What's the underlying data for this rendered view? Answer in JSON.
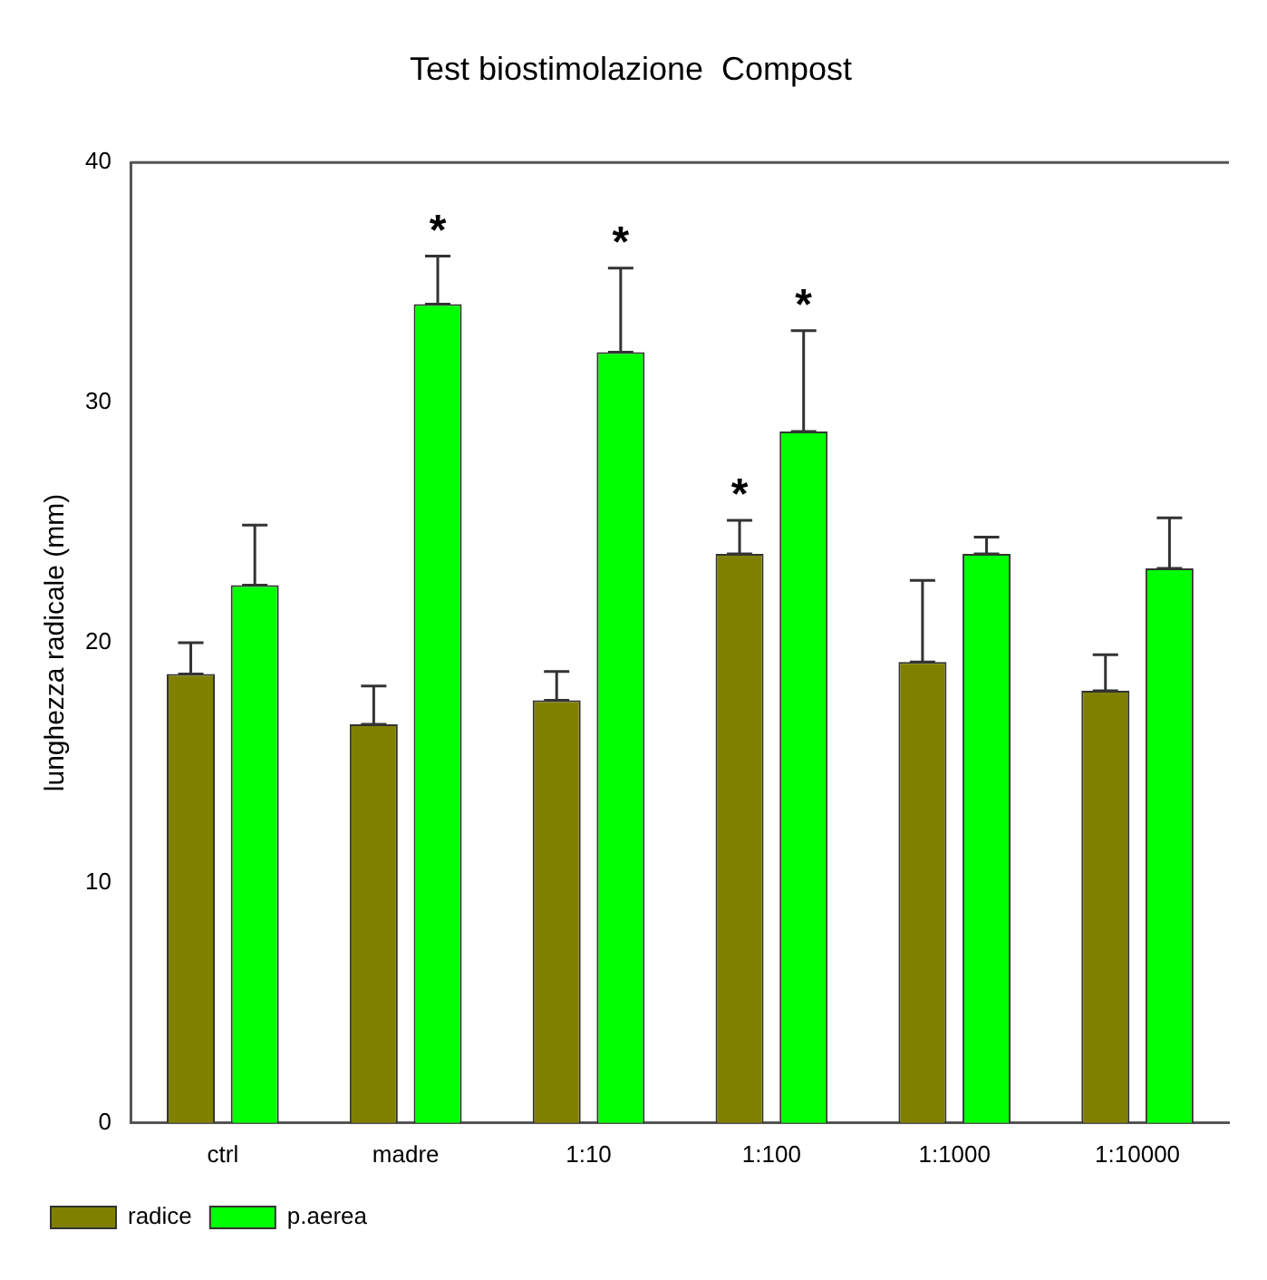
{
  "chart_data": {
    "type": "bar",
    "title": "Test biostimolazione  Compost",
    "ylabel": "lunghezza radicale (mm)",
    "categories": [
      "ctrl",
      "madre",
      "1:10",
      "1:100",
      "1:1000",
      "1:10000"
    ],
    "series": [
      {
        "name": "radice",
        "color": "#808000",
        "values": [
          18.7,
          16.6,
          17.6,
          23.7,
          19.2,
          18.0
        ],
        "value_labels": [
          null,
          null,
          null,
          "*",
          null,
          null
        ],
        "errors": [
          [
            18.7,
            20.0
          ],
          [
            16.6,
            18.2
          ],
          [
            17.6,
            18.8
          ],
          [
            23.7,
            25.1
          ],
          [
            19.2,
            22.6
          ],
          [
            18.0,
            19.5
          ]
        ]
      },
      {
        "name": "p.aerea",
        "color": "#00ff00",
        "values": [
          22.4,
          34.1,
          32.1,
          28.8,
          23.7,
          23.1
        ],
        "value_labels": [
          null,
          "*",
          "*",
          "*",
          null,
          null
        ],
        "errors": [
          [
            22.4,
            24.9
          ],
          [
            34.1,
            36.1
          ],
          [
            32.1,
            35.6
          ],
          [
            28.8,
            33.0
          ],
          [
            23.7,
            24.4
          ],
          [
            23.1,
            25.2
          ]
        ]
      }
    ],
    "ylim": [
      0,
      40
    ],
    "yticks": [
      0,
      10,
      20,
      30,
      40
    ],
    "grid": false,
    "legend": "bottom left"
  }
}
